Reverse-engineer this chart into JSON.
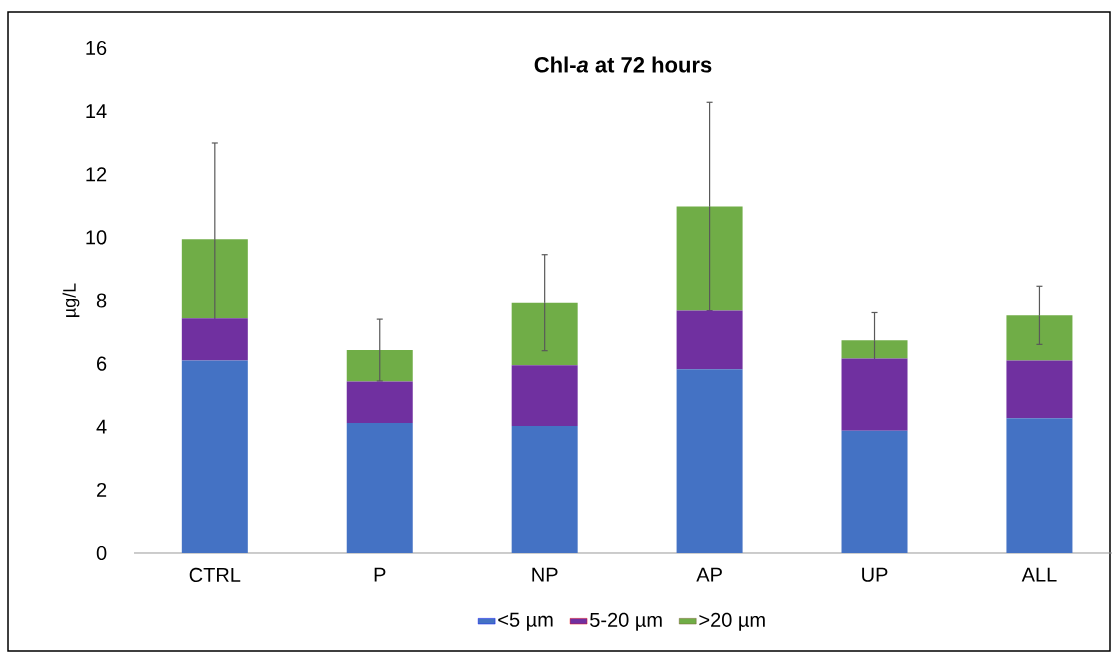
{
  "chart_data": {
    "type": "bar",
    "stacked": true,
    "title": "Chl-*a* at 72 hours",
    "ylabel": "µg/L",
    "categories": [
      "CTRL",
      "P",
      "NP",
      "AP",
      "UP",
      "ALL"
    ],
    "series": [
      {
        "name": "<5 µm",
        "color": "#4472c4",
        "values": [
          6.1,
          4.12,
          4.02,
          5.82,
          3.87,
          4.27
        ]
      },
      {
        "name": "5-20 µm",
        "color": "#7030a0",
        "values": [
          1.34,
          1.31,
          1.93,
          1.86,
          2.29,
          1.83
        ]
      },
      {
        "name": ">20 µm",
        "color": "#70ad47",
        "values": [
          2.5,
          1.0,
          1.98,
          3.3,
          0.58,
          1.43
        ],
        "errors": [
          3.05,
          0.98,
          1.52,
          3.3,
          0.88,
          0.92
        ]
      }
    ],
    "ylim": [
      0,
      16
    ],
    "yticks": [
      0,
      2,
      4,
      6,
      8,
      10,
      12,
      14,
      16
    ],
    "grid": false,
    "legend": "bottom"
  }
}
